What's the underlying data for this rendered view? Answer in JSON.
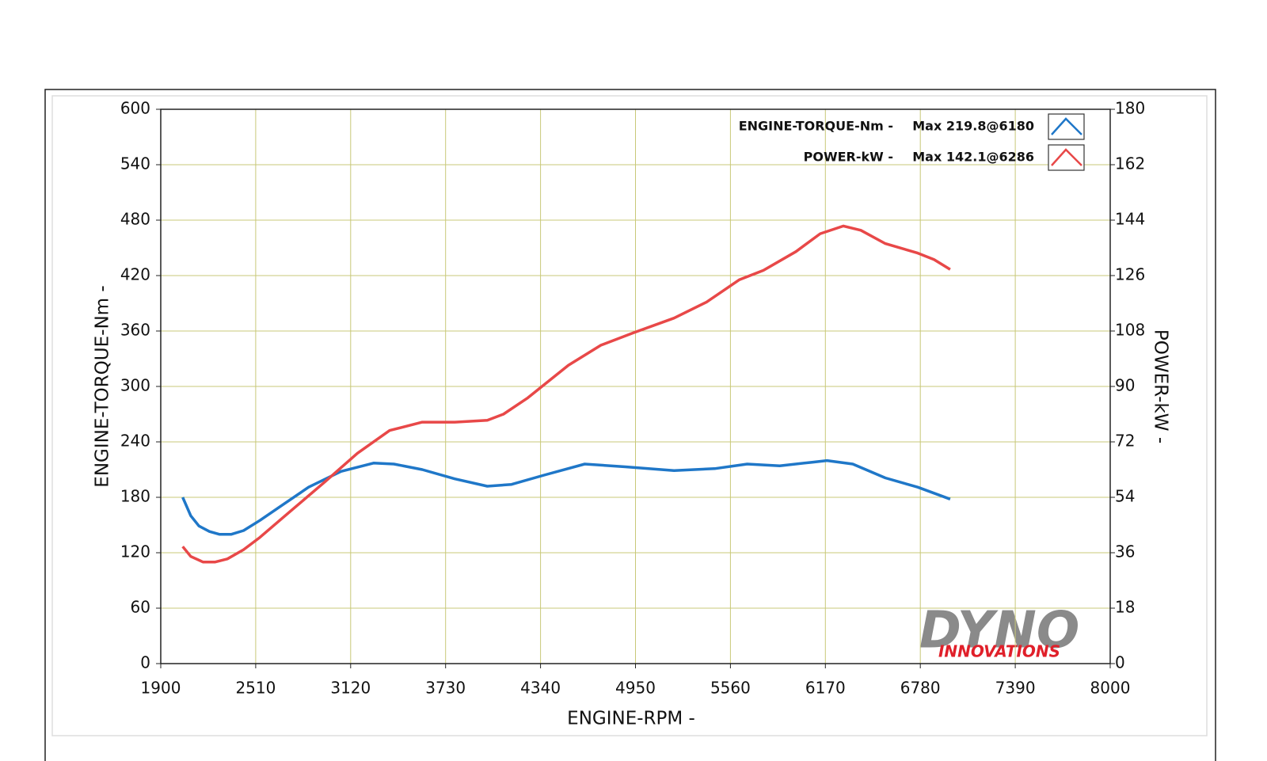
{
  "chart_data": {
    "type": "line",
    "x_label": "ENGINE-RPM -",
    "y_label": "ENGINE-TORQUE-Nm -",
    "y2_label": "POWER-kW -",
    "xlim": [
      1900,
      8000
    ],
    "xticks": [
      1900,
      2510,
      3120,
      3730,
      4340,
      4950,
      5560,
      6170,
      6780,
      7390,
      8000
    ],
    "ylim": [
      0,
      600
    ],
    "yticks": [
      0,
      60,
      120,
      180,
      240,
      300,
      360,
      420,
      480,
      540,
      600
    ],
    "y2lim": [
      0,
      180
    ],
    "y2ticks": [
      0,
      18,
      36,
      54,
      72,
      90,
      108,
      126,
      144,
      162,
      180
    ],
    "grid": true,
    "grid_color": "#c8c878",
    "legend": "upper right",
    "series": [
      {
        "name": "ENGINE-TORQUE-Nm -",
        "max_label": "Max 219.8@6180",
        "color": "#1f77c8",
        "x": [
          2041,
          2093,
          2145,
          2213,
          2276,
          2354,
          2432,
          2537,
          2693,
          2850,
          3058,
          3267,
          3398,
          3580,
          3789,
          3998,
          4154,
          4363,
          4624,
          4885,
          5198,
          5459,
          5668,
          5877,
          6085,
          6180,
          6346,
          6555,
          6763,
          6972
        ],
        "values": [
          180,
          160,
          149,
          143,
          140,
          140,
          144,
          155,
          173,
          191,
          208,
          217,
          216,
          210,
          200,
          192,
          194,
          204,
          216,
          213,
          209,
          211,
          216,
          214,
          218,
          219.8,
          216,
          201,
          191,
          178
        ]
      },
      {
        "name": "POWER-kW -",
        "max_label": "Max 142.1@6286",
        "color": "#e84848",
        "axis": "y2",
        "x": [
          2041,
          2093,
          2171,
          2250,
          2328,
          2432,
          2537,
          2745,
          2954,
          3163,
          3371,
          3580,
          3789,
          3998,
          4102,
          4258,
          4519,
          4728,
          4937,
          5198,
          5407,
          5616,
          5772,
          5981,
          6137,
          6286,
          6398,
          6555,
          6763,
          6868,
          6972
        ],
        "values": [
          38,
          34.8,
          33,
          33,
          34,
          37,
          41,
          50,
          59,
          68.3,
          75.7,
          78.4,
          78.4,
          79,
          81,
          86.3,
          96.9,
          103.4,
          107.4,
          112.2,
          117.4,
          124.6,
          127.7,
          133.8,
          139.6,
          142.1,
          140.7,
          136.4,
          133.3,
          131.2,
          128
        ]
      }
    ],
    "logo": {
      "top": "DYNO",
      "bottom": "INNOVATIONS"
    }
  }
}
